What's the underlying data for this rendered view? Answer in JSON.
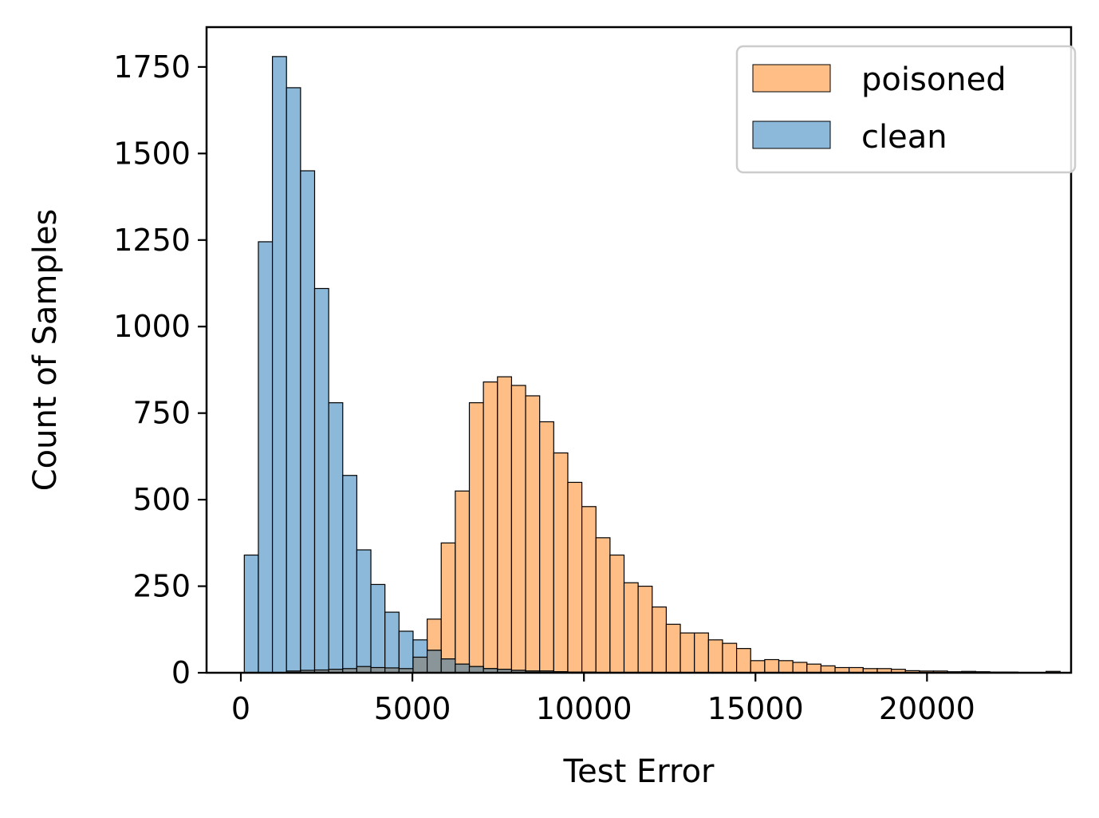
{
  "chart_data": {
    "type": "bar",
    "subtype": "overlaid-histogram",
    "xlabel": "Test Error",
    "ylabel": "Count of Samples",
    "xlim": [
      -1000,
      24200
    ],
    "ylim": [
      0,
      1865
    ],
    "xticks": [
      0,
      5000,
      10000,
      15000,
      20000
    ],
    "yticks": [
      0,
      250,
      500,
      750,
      1000,
      1250,
      1500,
      1750
    ],
    "bin_start": 100,
    "bin_width": 410,
    "legend_position": "top-right",
    "grid": false,
    "series": [
      {
        "name": "poisoned",
        "color": "#ffbe86",
        "values": [
          0,
          0,
          0,
          5,
          7,
          8,
          10,
          12,
          18,
          15,
          14,
          12,
          45,
          155,
          375,
          525,
          780,
          840,
          855,
          830,
          800,
          725,
          635,
          550,
          480,
          390,
          340,
          260,
          250,
          190,
          140,
          115,
          115,
          95,
          85,
          70,
          35,
          38,
          35,
          30,
          25,
          20,
          15,
          15,
          12,
          12,
          10,
          6,
          5,
          5,
          3,
          4,
          3,
          2,
          2,
          1,
          1,
          4
        ]
      },
      {
        "name": "clean",
        "color": "#8cb8d9",
        "values": [
          340,
          1245,
          1780,
          1690,
          1450,
          1110,
          780,
          570,
          355,
          255,
          175,
          120,
          95,
          65,
          40,
          25,
          18,
          12,
          10,
          7,
          5,
          5,
          3,
          2,
          2,
          1,
          1,
          1,
          1
        ]
      }
    ]
  }
}
